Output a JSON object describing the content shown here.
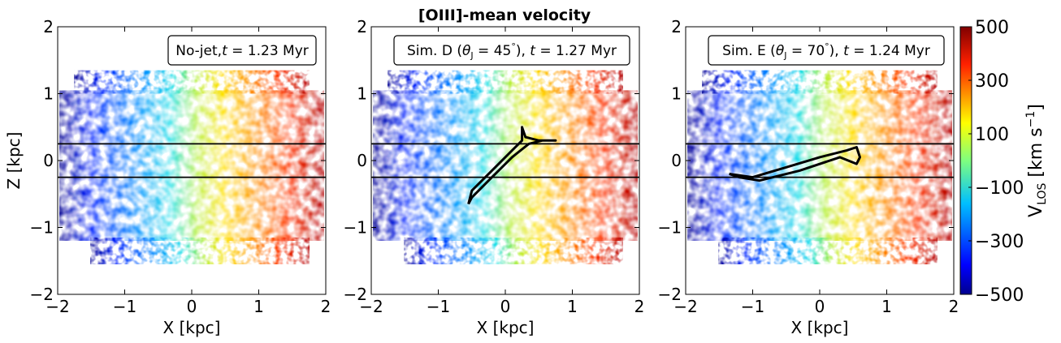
{
  "figure": {
    "title": "[OIII]-mean velocity"
  },
  "chart_data": {
    "type": "heatmap",
    "title": "[OIII]-mean velocity",
    "colormap": "jet",
    "panels": [
      {
        "label": "No-jet,t = 1.23 Myr",
        "label_parts": [
          "No-jet,",
          "t",
          " = 1.23 Myr"
        ],
        "xlabel": "X [kpc]",
        "ylabel": "Z [kpc]",
        "xlim": [
          -2,
          2
        ],
        "ylim": [
          -2,
          2
        ],
        "xticks": [
          "−2",
          "−1",
          "0",
          "1",
          "2"
        ],
        "yticks": [
          "−2",
          "−1",
          "0",
          "1",
          "2"
        ],
        "hlines": [
          0.25,
          -0.25
        ],
        "jet_contour": []
      },
      {
        "label": "Sim. D (θJ = 45°), t = 1.27 Myr",
        "label_parts": [
          "Sim.  D (",
          "θ",
          "J",
          " = 45",
          "°",
          "), ",
          "t",
          " = 1.27 Myr"
        ],
        "xlabel": "X [kpc]",
        "ylabel": "",
        "xlim": [
          -2,
          2
        ],
        "ylim": [
          -2,
          2
        ],
        "xticks": [
          "−2",
          "−1",
          "0",
          "1",
          "2"
        ],
        "yticks": [
          "−2",
          "−1",
          "0",
          "1",
          "2"
        ],
        "hlines": [
          0.25,
          -0.25
        ],
        "jet_contour": [
          [
            -0.55,
            -0.65
          ],
          [
            -0.5,
            -0.45
          ],
          [
            -0.2,
            -0.15
          ],
          [
            0.1,
            0.15
          ],
          [
            0.25,
            0.3
          ],
          [
            0.25,
            0.5
          ],
          [
            0.3,
            0.35
          ],
          [
            0.5,
            0.3
          ],
          [
            0.75,
            0.3
          ],
          [
            0.55,
            0.3
          ],
          [
            0.35,
            0.25
          ],
          [
            0.1,
            0.05
          ],
          [
            -0.25,
            -0.3
          ],
          [
            -0.5,
            -0.55
          ],
          [
            -0.55,
            -0.65
          ]
        ]
      },
      {
        "label": "Sim. E (θJ = 70°), t = 1.24 Myr",
        "label_parts": [
          "Sim.  E (",
          "θ",
          "J",
          " = 70",
          "°",
          "), ",
          "t",
          " = 1.24 Myr"
        ],
        "xlabel": "X [kpc]",
        "ylabel": "",
        "xlim": [
          -2,
          2
        ],
        "ylim": [
          -2,
          2
        ],
        "xticks": [
          "−2",
          "−1",
          "0",
          "1",
          "2"
        ],
        "yticks": [
          "−2",
          "−1",
          "0",
          "1",
          "2"
        ],
        "hlines": [
          0.25,
          -0.25
        ],
        "jet_contour": [
          [
            -1.35,
            -0.2
          ],
          [
            -1.0,
            -0.25
          ],
          [
            -0.5,
            -0.1
          ],
          [
            0.0,
            0.05
          ],
          [
            0.4,
            0.15
          ],
          [
            0.55,
            0.2
          ],
          [
            0.6,
            0.05
          ],
          [
            0.55,
            -0.05
          ],
          [
            0.3,
            0.05
          ],
          [
            -0.3,
            -0.15
          ],
          [
            -0.9,
            -0.3
          ],
          [
            -1.2,
            -0.25
          ],
          [
            -1.35,
            -0.2
          ]
        ]
      }
    ],
    "colorbar": {
      "label": "V_LOS [km s^-1]",
      "label_parts": [
        "V",
        "LOS",
        " [km s",
        "−1",
        "]"
      ],
      "range": [
        -500,
        500
      ],
      "ticks": [
        500,
        300,
        100,
        -100,
        -300,
        -500
      ],
      "tick_labels": [
        "500",
        "300",
        "100",
        "−100",
        "−300",
        "−500"
      ]
    }
  }
}
